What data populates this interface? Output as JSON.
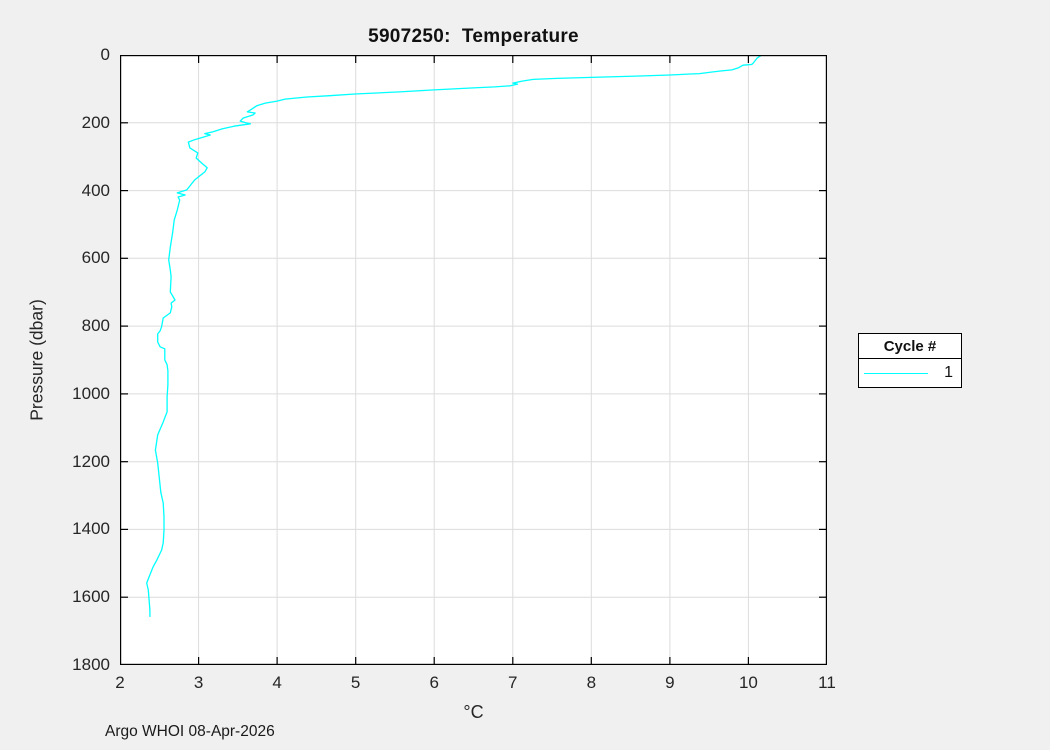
{
  "figure": {
    "background": "#f0f0f0",
    "footer": "Argo WHOI 08-Apr-2026"
  },
  "colors": {
    "plot_background": "#ffffff",
    "axis_box": "#000000",
    "grid": "#dcdcdc",
    "tick_text": "#262626",
    "profile_line": "#00ffff"
  },
  "legend": {
    "title": "Cycle #",
    "entries": [
      {
        "label": "1",
        "color": "#00ffff"
      }
    ]
  },
  "chart_data": {
    "type": "line",
    "title": "5907250:  Temperature",
    "xlabel": "°C",
    "ylabel": "Pressure (dbar)",
    "xlim": [
      2,
      11
    ],
    "ylim": [
      0,
      1800
    ],
    "y_inverted": true,
    "grid": true,
    "xticks": [
      2,
      3,
      4,
      5,
      6,
      7,
      8,
      9,
      10,
      11
    ],
    "yticks": [
      0,
      200,
      400,
      600,
      800,
      1000,
      1200,
      1400,
      1600,
      1800
    ],
    "legend_position": "right-outside",
    "series": [
      {
        "name": "1",
        "color": "#00ffff",
        "x_name": "temperature_c",
        "y_name": "pressure_dbar",
        "temperature_c": [
          10.17,
          10.11,
          10.06,
          10.04,
          9.93,
          9.87,
          9.79,
          9.66,
          9.55,
          9.38,
          9.26,
          9.0,
          8.62,
          8.0,
          7.56,
          7.26,
          7.12,
          7.0,
          7.06,
          6.97,
          6.77,
          6.5,
          6.0,
          5.56,
          4.99,
          4.67,
          4.38,
          4.1,
          4.0,
          3.85,
          3.74,
          3.68,
          3.62,
          3.72,
          3.69,
          3.57,
          3.53,
          3.6,
          3.66,
          3.45,
          3.3,
          3.18,
          3.08,
          3.15,
          3.05,
          2.95,
          2.87,
          2.89,
          2.99,
          2.97,
          3.04,
          3.11,
          3.08,
          2.95,
          2.85,
          2.73,
          2.83,
          2.74,
          2.76,
          2.73,
          2.69,
          2.67,
          2.64,
          2.62,
          2.64,
          2.65,
          2.64,
          2.7,
          2.65,
          2.66,
          2.64,
          2.55,
          2.53,
          2.51,
          2.48,
          2.48,
          2.51,
          2.57,
          2.57,
          2.6,
          2.61,
          2.61,
          2.6,
          2.6,
          2.55,
          2.48,
          2.45,
          2.48,
          2.5,
          2.52,
          2.55,
          2.56,
          2.56,
          2.55,
          2.53,
          2.47,
          2.42,
          2.38,
          2.34,
          2.36,
          2.37,
          2.38,
          2.38
        ],
        "pressure_dbar": [
          0,
          9,
          24,
          28,
          30,
          38,
          44,
          47,
          50,
          55,
          56,
          59,
          62,
          66,
          69,
          72,
          77,
          83,
          86,
          91,
          94,
          97,
          103,
          109,
          115,
          120,
          124,
          130,
          136,
          142,
          150,
          159,
          168,
          171,
          177,
          186,
          195,
          200,
          203,
          210,
          218,
          227,
          232,
          236,
          243,
          250,
          257,
          274,
          289,
          304,
          319,
          333,
          345,
          369,
          398,
          407,
          413,
          419,
          428,
          457,
          487,
          525,
          567,
          605,
          634,
          655,
          699,
          723,
          732,
          743,
          761,
          776,
          802,
          814,
          823,
          847,
          861,
          867,
          900,
          914,
          932,
          973,
          1009,
          1053,
          1083,
          1121,
          1166,
          1204,
          1248,
          1290,
          1322,
          1363,
          1402,
          1440,
          1461,
          1490,
          1511,
          1534,
          1558,
          1579,
          1608,
          1638,
          1658
        ]
      }
    ]
  }
}
